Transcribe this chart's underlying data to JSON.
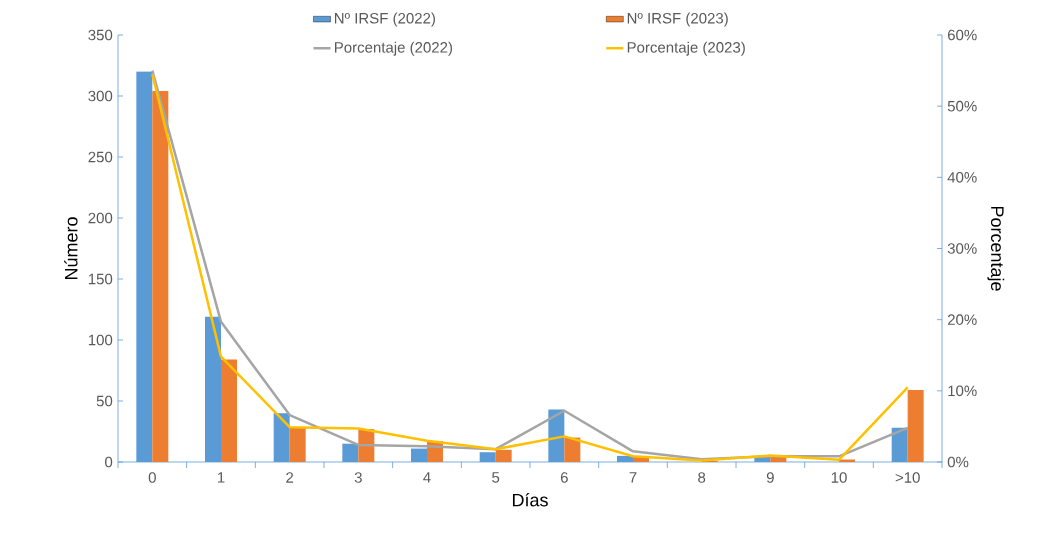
{
  "chart_data": {
    "type": "bar",
    "xlabel": "Días",
    "ylabel": "Número",
    "y2label": "Porcentaje",
    "legend": "top",
    "categories": [
      "0",
      "1",
      "2",
      "3",
      "4",
      "5",
      "6",
      "7",
      "8",
      "9",
      "10",
      ">10"
    ],
    "ylim": [
      0,
      350
    ],
    "yticks": [
      0,
      50,
      100,
      150,
      200,
      250,
      300,
      350
    ],
    "y2lim": [
      0,
      60
    ],
    "y2ticks": [
      {
        "value": 0,
        "label": "0%"
      },
      {
        "value": 10,
        "label": "10%"
      },
      {
        "value": 20,
        "label": "20%"
      },
      {
        "value": 30,
        "label": "30%"
      },
      {
        "value": 40,
        "label": "40%"
      },
      {
        "value": 50,
        "label": "50%"
      },
      {
        "value": 60,
        "label": "60%"
      }
    ],
    "series": [
      {
        "name": "Nº IRSF (2022)",
        "color": "#5b9bd5",
        "values": [
          320,
          119,
          40,
          15,
          11,
          8,
          43,
          5,
          null,
          4,
          null,
          28
        ]
      },
      {
        "name": "Nº IRSF (2023)",
        "color": "#ed7d31",
        "values": [
          304,
          84,
          28,
          27,
          17,
          10,
          20,
          4,
          1,
          5,
          2,
          59
        ]
      },
      {
        "name": "Porcentaje (2022)",
        "type": "line",
        "axis": "y2",
        "color": "#a5a5a5",
        "values": [
          55,
          19.7,
          6.6,
          2.4,
          2.2,
          1.8,
          7.2,
          1.5,
          0.4,
          0.8,
          0.8,
          4.8
        ]
      },
      {
        "name": "Porcentaje (2023)",
        "type": "line",
        "axis": "y2",
        "color": "#ffc000",
        "values": [
          54.5,
          14.8,
          4.9,
          4.7,
          3,
          1.8,
          3.6,
          0.8,
          0.2,
          0.9,
          0.3,
          10.5
        ]
      }
    ]
  }
}
